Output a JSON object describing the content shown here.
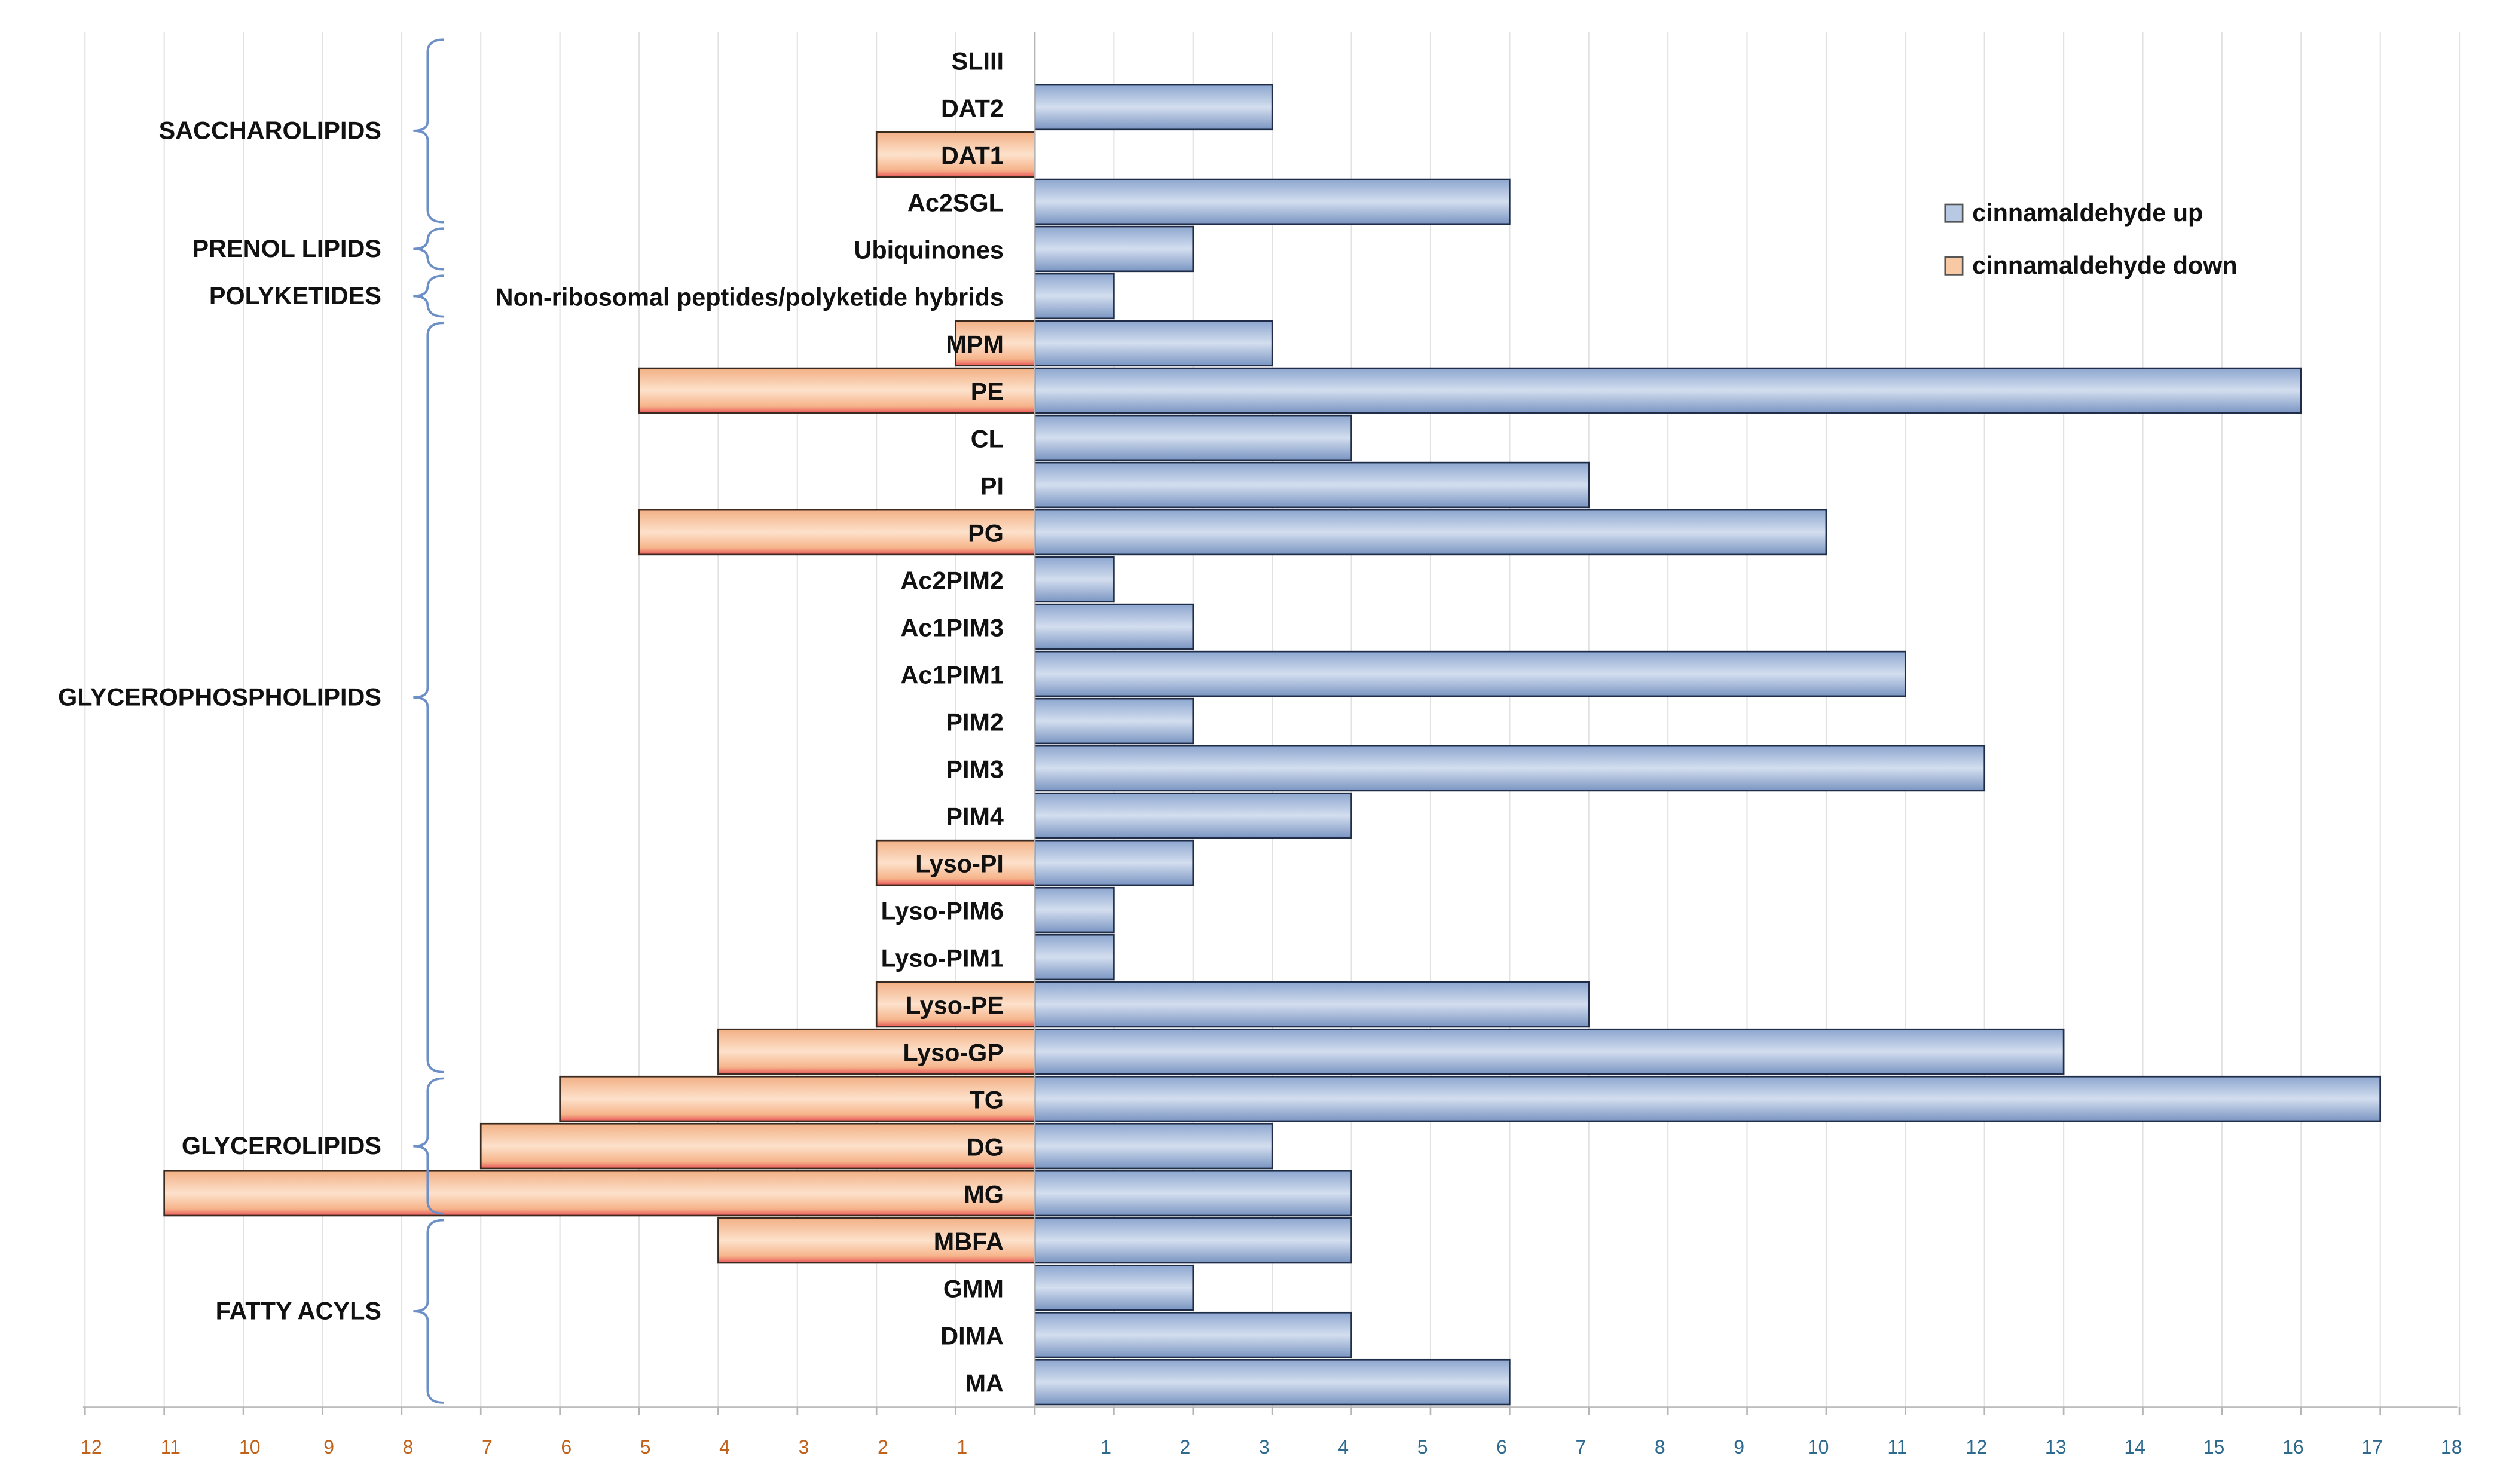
{
  "chart_data": {
    "type": "bar",
    "orientation": "horizontal-diverging",
    "categories": [
      "SLIII",
      "DAT2",
      "DAT1",
      "Ac2SGL",
      "Ubiquinones",
      "Non-ribosomal peptides/polyketide hybrids",
      "MPM",
      "PE",
      "CL",
      "PI",
      "PG",
      "Ac2PIM2",
      "Ac1PIM3",
      "Ac1PIM1",
      "PIM2",
      "PIM3",
      "PIM4",
      "Lyso-PI",
      "Lyso-PIM6",
      "Lyso-PIM1",
      "Lyso-PE",
      "Lyso-GP",
      "TG",
      "DG",
      "MG",
      "MBFA",
      "GMM",
      "DIMA",
      "MA"
    ],
    "series": [
      {
        "name": "cinnamaldehyde up",
        "color": "#b8c9e4",
        "values": [
          0,
          3,
          0,
          6,
          2,
          1,
          3,
          16,
          4,
          7,
          10,
          1,
          2,
          11,
          2,
          12,
          4,
          2,
          1,
          1,
          7,
          13,
          17,
          3,
          4,
          4,
          2,
          4,
          6
        ]
      },
      {
        "name": "cinnamaldehyde down",
        "color": "#f9c9a6",
        "values": [
          0,
          0,
          2,
          0,
          0,
          0,
          1,
          5,
          0,
          0,
          5,
          0,
          0,
          0,
          0,
          0,
          0,
          2,
          0,
          0,
          2,
          4,
          6,
          7,
          11,
          4,
          0,
          0,
          0
        ]
      }
    ],
    "groups": [
      {
        "label": "SACCHAROLIPIDS",
        "from": 0,
        "to": 3
      },
      {
        "label": "PRENOL LIPIDS",
        "from": 4,
        "to": 4
      },
      {
        "label": "POLYKETIDES",
        "from": 5,
        "to": 5
      },
      {
        "label": "GLYCEROPHOSPHOLIPIDS",
        "from": 6,
        "to": 21
      },
      {
        "label": "GLYCEROLIPIDS",
        "from": 22,
        "to": 24
      },
      {
        "label": "FATTY ACYLS",
        "from": 25,
        "to": 28
      }
    ],
    "x_left_ticks": [
      "12",
      "11",
      "10",
      "9",
      "8",
      "7",
      "6",
      "5",
      "4",
      "3",
      "2",
      "1"
    ],
    "x_right_ticks": [
      "1",
      "2",
      "3",
      "4",
      "5",
      "6",
      "7",
      "8",
      "9",
      "10",
      "11",
      "12",
      "13",
      "14",
      "15",
      "16",
      "17",
      "18"
    ],
    "xlim_left": [
      0,
      12
    ],
    "xlim_right": [
      0,
      18
    ],
    "left_tick_color": "#c0621b",
    "right_tick_color": "#2e6a8e",
    "legend": [
      "cinnamaldehyde up",
      "cinnamaldehyde down"
    ],
    "legend_position": "top-right",
    "title": "",
    "xlabel": "",
    "ylabel": ""
  }
}
